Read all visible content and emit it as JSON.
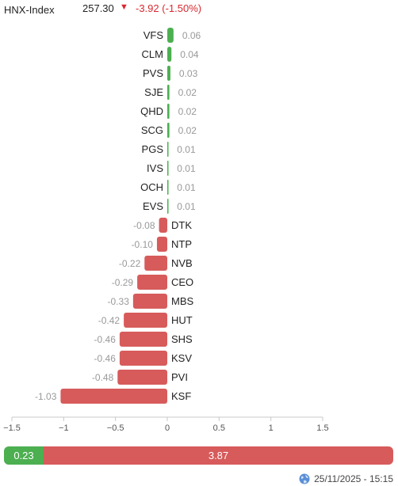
{
  "header": {
    "index_name": "HNX-Index",
    "index_value": "257.30",
    "change_arrow": "▼",
    "change_text": "-3.92 (-1.50%)",
    "down_color": "#d9282f"
  },
  "chart_data": {
    "type": "bar",
    "orientation": "horizontal",
    "categories": [
      "VFS",
      "CLM",
      "PVS",
      "SJE",
      "QHD",
      "SCG",
      "PGS",
      "IVS",
      "OCH",
      "EVS",
      "DTK",
      "NTP",
      "NVB",
      "CEO",
      "MBS",
      "HUT",
      "SHS",
      "KSV",
      "PVI",
      "KSF"
    ],
    "values": [
      0.06,
      0.04,
      0.03,
      0.02,
      0.02,
      0.02,
      0.01,
      0.01,
      0.01,
      0.01,
      -0.08,
      -0.1,
      -0.22,
      -0.29,
      -0.33,
      -0.42,
      -0.46,
      -0.46,
      -0.48,
      -1.03
    ],
    "value_labels": [
      "0.06",
      "0.04",
      "0.03",
      "0.02",
      "0.02",
      "0.02",
      "0.01",
      "0.01",
      "0.01",
      "0.01",
      "-0.08",
      "-0.10",
      "-0.22",
      "-0.29",
      "-0.33",
      "-0.42",
      "-0.46",
      "-0.46",
      "-0.48",
      "-1.03"
    ],
    "xlim": [
      -1.5,
      1.5
    ],
    "x_ticks": [
      -1.5,
      -1,
      -0.5,
      0,
      0.5,
      1,
      1.5
    ],
    "x_tick_labels": [
      "−1.5",
      "−1",
      "−0.5",
      "0",
      "0.5",
      "1",
      "1.5"
    ],
    "positive_color": "#4caf50",
    "negative_color": "#d75b5b",
    "grid": false
  },
  "breadth": {
    "up_value": 0.23,
    "down_value": 3.87,
    "up_label": "0.23",
    "down_label": "3.87",
    "up_color": "#4caf50",
    "down_color": "#d75b5b"
  },
  "footer": {
    "timestamp": "25/11/2025 - 15:15",
    "icon": "globe-icon"
  }
}
